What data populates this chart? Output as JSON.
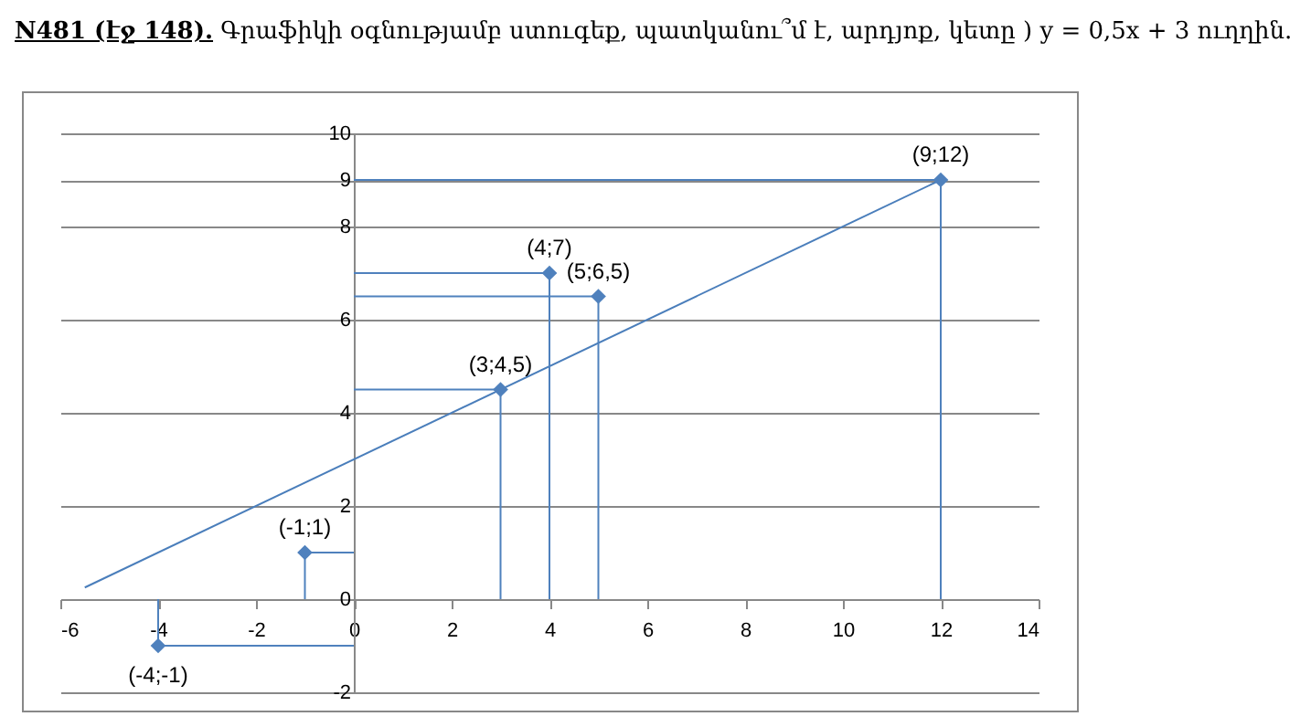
{
  "chart_data": {
    "type": "scatter",
    "title": "N481 (էջ 148).",
    "subtitle": "Գրաֆիկի օգնությամբ ստուգեք, պատկանու՞մ է, արդյոք, կետը ) y = 0,5x + 3 ուղղին.",
    "xlim": [
      -6,
      14
    ],
    "xticks": [
      -6,
      -4,
      -2,
      0,
      2,
      4,
      6,
      8,
      10,
      12,
      14
    ],
    "ylim": [
      -2,
      10
    ],
    "yticks": [
      -2,
      0,
      2,
      4,
      6,
      8,
      9,
      10
    ],
    "grid": "y",
    "line_style": "solid",
    "series": [
      {
        "type": "line",
        "color": "#4a7ebb",
        "x": [
          -5.5,
          12
        ],
        "values": [
          0.25,
          9
        ]
      },
      {
        "type": "line",
        "color": "#4f81bd",
        "x": [
          -4,
          -4,
          0
        ],
        "values": [
          0,
          -1,
          -1
        ]
      },
      {
        "type": "line",
        "color": "#4f81bd",
        "x": [
          -1,
          -1,
          0
        ],
        "values": [
          0,
          1,
          1
        ]
      },
      {
        "type": "line",
        "color": "#4f81bd",
        "x": [
          3,
          3,
          0
        ],
        "values": [
          0,
          4.5,
          4.5
        ]
      },
      {
        "type": "line",
        "color": "#4f81bd",
        "x": [
          4,
          4,
          0
        ],
        "values": [
          0,
          7,
          7
        ]
      },
      {
        "type": "line",
        "color": "#4f81bd",
        "x": [
          5,
          5,
          0
        ],
        "values": [
          0,
          6.5,
          6.5
        ]
      },
      {
        "type": "line",
        "color": "#4f81bd",
        "x": [
          12,
          12,
          0
        ],
        "values": [
          0,
          9,
          9
        ]
      },
      {
        "type": "scatter",
        "color": "#4f81bd",
        "marker": "diamond",
        "x": [
          -4,
          -1,
          3,
          4,
          5,
          12
        ],
        "values": [
          -1,
          1,
          4.5,
          7,
          6.5,
          9
        ],
        "value_labels": [
          "(-4;-1)",
          "(-1;1)",
          "(3;4,5)",
          "(4;7)",
          "(5;6,5)",
          "(9;12)"
        ]
      }
    ]
  }
}
